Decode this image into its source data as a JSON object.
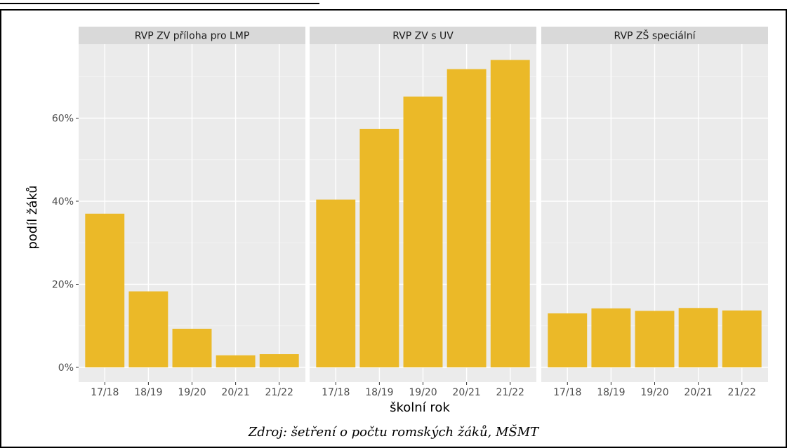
{
  "caption": "Zdroj: šetření o počtu romských žáků, MŠMT",
  "chart_data": {
    "type": "bar",
    "xlabel": "školní rok",
    "ylabel": "podíl žáků",
    "ylim": [
      0,
      0.75
    ],
    "yticks": [
      0,
      0.2,
      0.4,
      0.6
    ],
    "ytick_labels": [
      "0%",
      "20%",
      "40%",
      "60%"
    ],
    "categories": [
      "17/18",
      "18/19",
      "19/20",
      "20/21",
      "21/22"
    ],
    "grid": true,
    "bar_color": "#EBB928",
    "panel_background": "#EBEBEB",
    "strip_background": "#D9D9D9",
    "panels": [
      {
        "title": "RVP ZV příloha pro LMP",
        "values": [
          0.37,
          0.183,
          0.093,
          0.029,
          0.032
        ]
      },
      {
        "title": "RVP ZV s UV",
        "values": [
          0.404,
          0.574,
          0.652,
          0.718,
          0.74
        ]
      },
      {
        "title": "RVP ZŠ speciální",
        "values": [
          0.13,
          0.142,
          0.136,
          0.143,
          0.137
        ]
      }
    ]
  }
}
